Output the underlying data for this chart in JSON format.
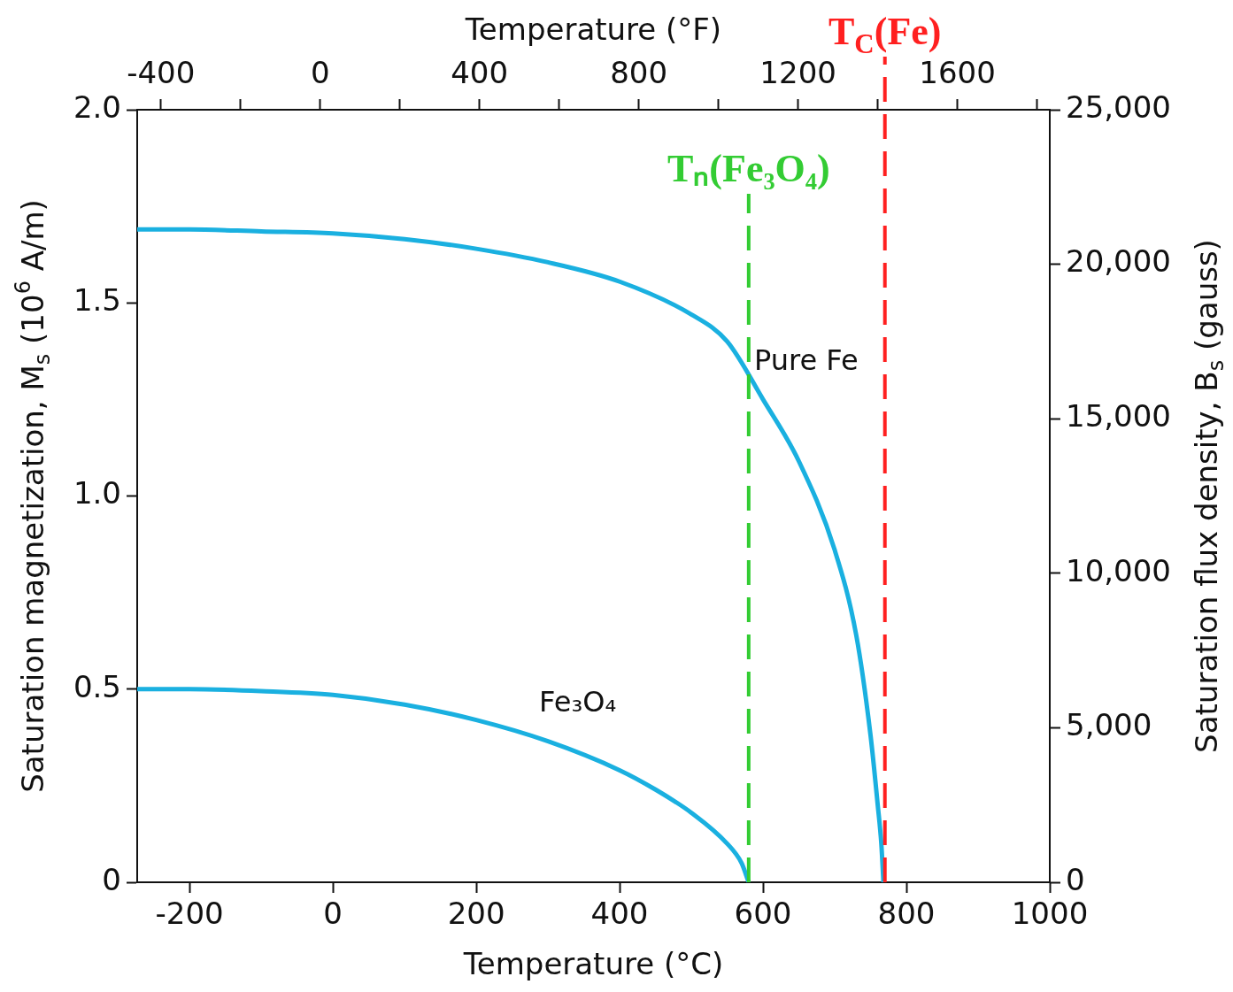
{
  "chart_data": {
    "type": "line",
    "xlabel": "Temperature (°C)",
    "x2label": "Temperature (°F)",
    "ylabel": "Saturation magnetization, M$_{s}$ (10$^{6}$ A/m)",
    "y2label": "Saturation flux density, B$_{s}$ (gauss)",
    "xlim": [
      -273,
      1000
    ],
    "xticks": [
      -200,
      0,
      200,
      400,
      600,
      800,
      1000
    ],
    "x2lim": [
      -459.4,
      1832
    ],
    "x2ticks": [
      -400,
      {
        "value": -200,
        "label": null
      },
      0,
      {
        "value": 200,
        "label": null
      },
      400,
      {
        "value": 600,
        "label": null
      },
      800,
      {
        "value": 1000,
        "label": null
      },
      1200,
      {
        "value": 1400,
        "label": null
      },
      1600,
      {
        "value": 1800,
        "label": null
      }
    ],
    "ylim": [
      0,
      2
    ],
    "yticks": [
      0,
      0.5,
      {
        "value": 1,
        "label": "1.0"
      },
      1.5,
      {
        "value": 2,
        "label": "2.0"
      }
    ],
    "y2lim": [
      0,
      25000
    ],
    "y2ticks": [
      0,
      {
        "value": 5000,
        "label": "5,000"
      },
      {
        "value": 10000,
        "label": "10,000"
      },
      {
        "value": 15000,
        "label": "15,000"
      },
      {
        "value": 20000,
        "label": "20,000"
      },
      {
        "value": 25000,
        "label": "25,000"
      }
    ],
    "grid": false,
    "legend": false,
    "marker": "none",
    "line_style": "solid",
    "series": [
      {
        "name": "Pure Fe",
        "color": "#1ab0e0",
        "x": [
          -273,
          -200,
          -100,
          0,
          100,
          200,
          300,
          400,
          500,
          550,
          600,
          650,
          700,
          730,
          750,
          760,
          765,
          768
        ],
        "values": [
          1.69,
          1.69,
          1.685,
          1.68,
          1.665,
          1.64,
          1.605,
          1.555,
          1.47,
          1.4,
          1.25,
          1.09,
          0.86,
          0.64,
          0.38,
          0.2,
          0.1,
          0
        ]
      },
      {
        "name": "Fe₃O₄",
        "color": "#1ab0e0",
        "x": [
          -273,
          -200,
          -100,
          0,
          100,
          200,
          300,
          400,
          450,
          500,
          550,
          570,
          580
        ],
        "values": [
          0.5,
          0.5,
          0.495,
          0.485,
          0.46,
          0.42,
          0.365,
          0.29,
          0.24,
          0.18,
          0.1,
          0.05,
          0
        ]
      }
    ],
    "ref_lines": [
      {
        "axis": "x",
        "value": 580,
        "label": "Tₙ(Fe₃O₄)",
        "color": "#33cc33",
        "line_style": "dashed"
      },
      {
        "axis": "x",
        "value": 770,
        "label": "T$_{C}$(Fe)",
        "color": "#ff2020",
        "line_style": "dashed"
      }
    ]
  }
}
